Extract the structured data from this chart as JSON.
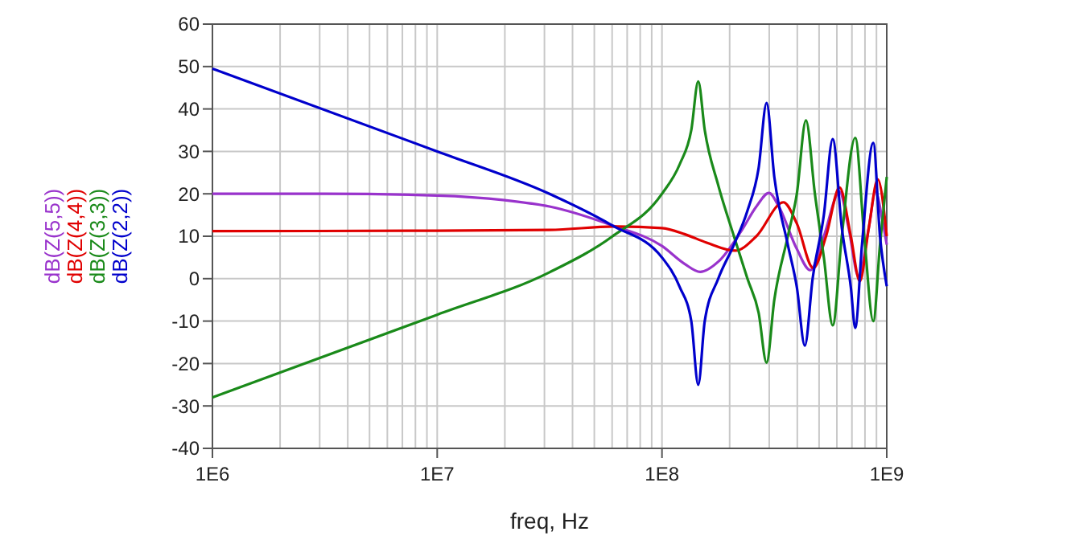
{
  "chart_data": {
    "type": "line",
    "xlabel": "freq, Hz",
    "log": "x",
    "grid": true,
    "legend": "left",
    "line_style": "solid",
    "xlim": [
      1000000,
      1000000000
    ],
    "ylim": [
      -40,
      60
    ],
    "xticks": [
      {
        "value": 1000000,
        "label": "1E6"
      },
      {
        "value": 2000000,
        "label": null
      },
      {
        "value": 3000000,
        "label": null
      },
      {
        "value": 4000000,
        "label": null
      },
      {
        "value": 5000000,
        "label": null
      },
      {
        "value": 6000000,
        "label": null
      },
      {
        "value": 7000000,
        "label": null
      },
      {
        "value": 8000000,
        "label": null
      },
      {
        "value": 9000000,
        "label": null
      },
      {
        "value": 10000000,
        "label": "1E7"
      },
      {
        "value": 20000000,
        "label": null
      },
      {
        "value": 30000000,
        "label": null
      },
      {
        "value": 40000000,
        "label": null
      },
      {
        "value": 50000000,
        "label": null
      },
      {
        "value": 60000000,
        "label": null
      },
      {
        "value": 70000000,
        "label": null
      },
      {
        "value": 80000000,
        "label": null
      },
      {
        "value": 90000000,
        "label": null
      },
      {
        "value": 100000000,
        "label": "1E8"
      },
      {
        "value": 200000000,
        "label": null
      },
      {
        "value": 300000000,
        "label": null
      },
      {
        "value": 400000000,
        "label": null
      },
      {
        "value": 500000000,
        "label": null
      },
      {
        "value": 600000000,
        "label": null
      },
      {
        "value": 700000000,
        "label": null
      },
      {
        "value": 800000000,
        "label": null
      },
      {
        "value": 900000000,
        "label": null
      },
      {
        "value": 1000000000,
        "label": "1E9"
      }
    ],
    "yticks": [
      -40,
      -30,
      -20,
      -10,
      0,
      10,
      20,
      30,
      40,
      50,
      60
    ],
    "series": [
      {
        "name": "dB(Z(5,5))",
        "color": "#9933cc",
        "x": [
          1000000,
          3160000,
          10000000,
          20000000,
          31600000,
          60300000,
          100000000,
          126000000,
          148000000,
          178000000,
          224000000,
          263000000,
          299000000,
          331000000,
          398000000,
          457000000,
          525000000,
          617000000,
          676000000,
          750000000,
          832000000,
          891000000,
          955000000,
          1000000000
        ],
        "values": [
          20,
          20,
          19.6,
          18.5,
          17,
          12.5,
          7.7,
          3.5,
          1.6,
          4,
          11,
          17,
          20.2,
          17,
          7,
          2,
          10,
          20.5,
          12,
          0.5,
          12,
          20.5,
          14,
          8
        ]
      },
      {
        "name": "dB(Z(4,4))",
        "color": "#e00000",
        "x": [
          1000000,
          10000000,
          31600000,
          63100000,
          100000000,
          126000000,
          158000000,
          212000000,
          263000000,
          347000000,
          398000000,
          471000000,
          537000000,
          617000000,
          692000000,
          759000000,
          832000000,
          912000000,
          1000000000
        ],
        "values": [
          11.2,
          11.3,
          11.5,
          12.3,
          11.9,
          10.5,
          8.5,
          6.6,
          10,
          18,
          13,
          2.5,
          10,
          21.5,
          10,
          -0.6,
          12,
          23.4,
          10
        ]
      },
      {
        "name": "dB(Z(3,3))",
        "color": "#1a8a1a",
        "x": [
          1000000,
          10000000,
          31600000,
          60300000,
          100000000,
          120000000,
          135000000,
          145000000,
          155000000,
          178000000,
          209000000,
          240000000,
          269000000,
          292000000,
          316000000,
          363000000,
          398000000,
          437000000,
          479000000,
          525000000,
          575000000,
          631000000,
          724000000,
          794000000,
          871000000,
          933000000,
          1000000000
        ],
        "values": [
          -28,
          -8.5,
          1.5,
          10,
          20,
          27,
          35,
          46.5,
          35,
          22,
          10,
          0,
          -8,
          -19.8,
          -5,
          10,
          20,
          37.3,
          20,
          5,
          -11,
          10,
          33.2,
          10,
          -10,
          8,
          24
        ]
      },
      {
        "name": "dB(Z(2,2))",
        "color": "#0000cc",
        "x": [
          1000000,
          10000000,
          31600000,
          60300000,
          100000000,
          120000000,
          135000000,
          145000000,
          155000000,
          178000000,
          209000000,
          240000000,
          269000000,
          292000000,
          316000000,
          363000000,
          398000000,
          432000000,
          468000000,
          525000000,
          575000000,
          631000000,
          692000000,
          724000000,
          776000000,
          871000000,
          933000000,
          1000000000
        ],
        "values": [
          49.5,
          30,
          20,
          12.5,
          5,
          -2,
          -10,
          -25,
          -10,
          0,
          8,
          16,
          26,
          41.4,
          24,
          8,
          -2,
          -15.8,
          0,
          15,
          32.9,
          12,
          -2,
          -11.6,
          8,
          32,
          10,
          -1.8
        ]
      }
    ]
  }
}
